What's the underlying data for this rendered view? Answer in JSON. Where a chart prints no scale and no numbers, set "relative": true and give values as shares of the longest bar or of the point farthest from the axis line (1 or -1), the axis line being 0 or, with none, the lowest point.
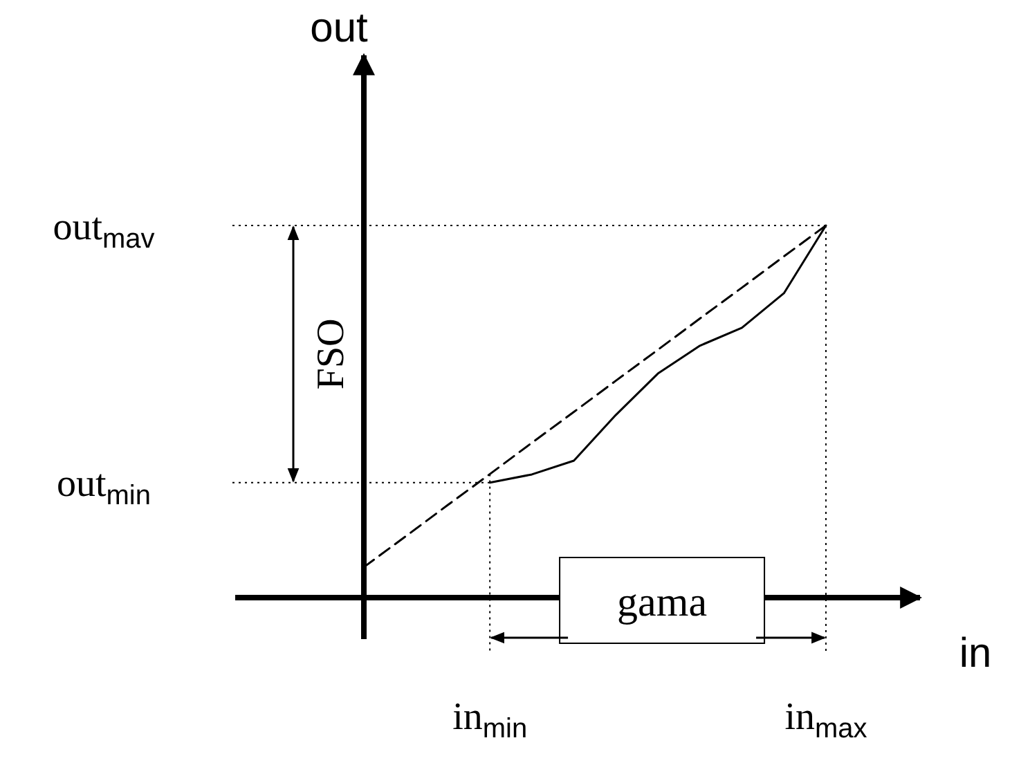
{
  "chart_data": {
    "type": "line",
    "relative": true,
    "xlabel": "in",
    "ylabel": "out",
    "categories": [
      null,
      null,
      null,
      "in$_{min}$",
      null,
      null,
      null,
      null,
      null,
      null,
      null,
      "in$_{max}$"
    ],
    "series": [
      {
        "color": "#000000",
        "line_style": "dashed",
        "values": [
          0.082,
          0.165,
          0.249,
          0.332,
          0.416,
          0.499,
          0.583,
          0.666,
          0.75,
          0.833,
          0.917,
          1
        ]
      },
      {
        "color": "#000000",
        "line_style": "solid",
        "values": [
          null,
          null,
          null,
          0.309,
          0.331,
          0.368,
          0.491,
          0.602,
          0.677,
          0.725,
          0.818,
          1
        ]
      }
    ],
    "ref_lines": [
      {
        "axis": "y",
        "value": 1,
        "label": "out$_{mav}$",
        "line_style": "dotted"
      },
      {
        "axis": "y",
        "value": 0.309,
        "label": "out$_{min}$",
        "line_style": "dotted"
      },
      {
        "axis": "x",
        "value": "in$_{min}$",
        "line_style": "dotted"
      },
      {
        "axis": "x",
        "value": "in$_{max}$",
        "line_style": "dotted"
      }
    ],
    "annotations": [
      "FSO",
      "gama"
    ]
  }
}
